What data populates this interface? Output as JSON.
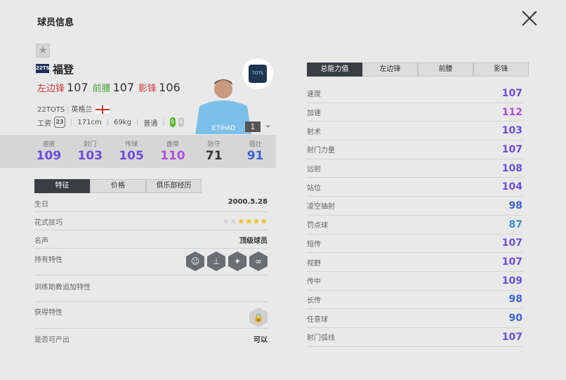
{
  "header": {
    "title": "球员信息",
    "close_icon": "close-icon"
  },
  "player": {
    "favorite_icon": "star-icon",
    "season_badge": "22TS",
    "name": "福登",
    "positions": [
      {
        "name": "左边锋",
        "rating": "107",
        "color": "#d23a3a"
      },
      {
        "name": "前腰",
        "rating": "107",
        "color": "#4aa33a"
      },
      {
        "name": "影锋",
        "rating": "106",
        "color": "#d23a3a"
      }
    ],
    "season": "22TOTS",
    "nation": "英格兰",
    "flag_icon": "england-flag-icon",
    "salary_label": "工资",
    "salary": "23",
    "height": "171cm",
    "weight": "69kg",
    "body_type": "普通",
    "weak_foot": {
      "right": "5",
      "left": "4"
    },
    "club_badge": "TOTS",
    "level": "1"
  },
  "summary_stats": [
    {
      "label": "速度",
      "value": "109",
      "color": "#6b4fe0"
    },
    {
      "label": "射门",
      "value": "103",
      "color": "#6b4fe0"
    },
    {
      "label": "传球",
      "value": "105",
      "color": "#6b4fe0"
    },
    {
      "label": "盘带",
      "value": "110",
      "color": "#b050e0"
    },
    {
      "label": "防守",
      "value": "71",
      "color": "#333333"
    },
    {
      "label": "强壮",
      "value": "91",
      "color": "#3a63d8"
    }
  ],
  "left_tabs": [
    {
      "label": "特征",
      "active": true
    },
    {
      "label": "价格"
    },
    {
      "label": "俱乐部经历"
    }
  ],
  "features": {
    "birthday": {
      "label": "生日",
      "value": "2000.5.28"
    },
    "skill_moves": {
      "label": "花式技巧",
      "stars": 4,
      "max": 6
    },
    "reputation": {
      "label": "名声",
      "value": "顶级球员"
    },
    "traits": {
      "label": "持有特性",
      "icons": [
        "playmaker-head-icon",
        "finesse-shot-icon",
        "power-header-icon",
        "dribbler-icon"
      ]
    },
    "coach_traits": {
      "label": "训练助教追加特性"
    },
    "acquired_traits": {
      "label": "获得特性",
      "icon": "lock-icon"
    },
    "producible": {
      "label": "是否可产出",
      "value": "可以"
    }
  },
  "right_tabs": [
    {
      "label": "总能力值",
      "active": true
    },
    {
      "label": "左边锋"
    },
    {
      "label": "前腰"
    },
    {
      "label": "影锋"
    }
  ],
  "attributes": [
    {
      "label": "速度",
      "value": "107",
      "color": "#6b4fe0"
    },
    {
      "label": "加速",
      "value": "112",
      "color": "#b050e0"
    },
    {
      "label": "射术",
      "value": "103",
      "color": "#6b4fe0"
    },
    {
      "label": "射门力量",
      "value": "107",
      "color": "#6b4fe0"
    },
    {
      "label": "远射",
      "value": "108",
      "color": "#6b4fe0"
    },
    {
      "label": "站位",
      "value": "104",
      "color": "#6b4fe0"
    },
    {
      "label": "凌空抽射",
      "value": "98",
      "color": "#3a63d8"
    },
    {
      "label": "罚点球",
      "value": "87",
      "color": "#3a8fd8"
    },
    {
      "label": "短传",
      "value": "107",
      "color": "#6b4fe0"
    },
    {
      "label": "视野",
      "value": "107",
      "color": "#6b4fe0"
    },
    {
      "label": "传中",
      "value": "109",
      "color": "#6b4fe0"
    },
    {
      "label": "长传",
      "value": "98",
      "color": "#3a63d8"
    },
    {
      "label": "任意球",
      "value": "90",
      "color": "#3a63d8"
    },
    {
      "label": "射门弧线",
      "value": "107",
      "color": "#6b4fe0"
    }
  ]
}
